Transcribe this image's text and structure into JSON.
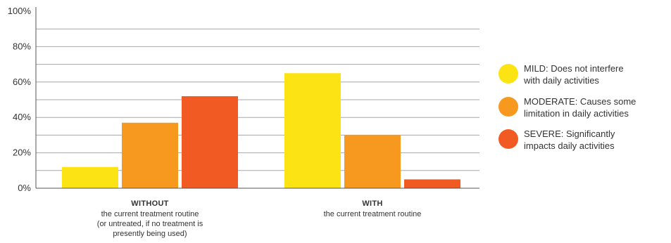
{
  "chart_data": {
    "type": "bar",
    "categories": [
      {
        "title": "WITHOUT",
        "subtitle": [
          "the current treatment routine",
          "(or untreated, if no treatment is",
          "presently being used)"
        ]
      },
      {
        "title": "WITH",
        "subtitle": [
          "the current treatment routine"
        ]
      }
    ],
    "series": [
      {
        "name": "MILD: Does not interfere with daily activities",
        "legend_lines": [
          "MILD: Does not interfere",
          "with daily activities"
        ],
        "color": "#FCE314",
        "values": [
          12,
          65
        ]
      },
      {
        "name": "MODERATE: Causes some limitation in daily activities",
        "legend_lines": [
          "MODERATE: Causes some",
          "limitation in daily activities"
        ],
        "color": "#F7981F",
        "values": [
          37,
          30
        ]
      },
      {
        "name": "SEVERE: Significantly impacts daily activities",
        "legend_lines": [
          "SEVERE: Significantly",
          "impacts daily activities"
        ],
        "color": "#F15A22",
        "values": [
          52,
          5
        ]
      }
    ],
    "ylim": [
      0,
      100
    ],
    "yticks": [
      "0%",
      "20%",
      "40%",
      "60%",
      "80%",
      "100%"
    ],
    "ytick_values": [
      0,
      20,
      40,
      60,
      80,
      100
    ],
    "grid_values": [
      10,
      20,
      30,
      40,
      50,
      60,
      70,
      80,
      90
    ],
    "grid": true,
    "legend_position": "right"
  }
}
